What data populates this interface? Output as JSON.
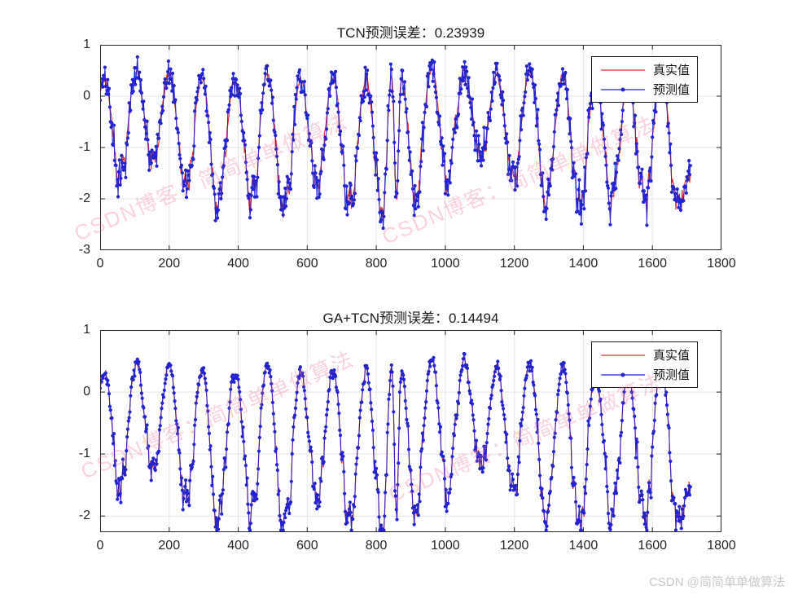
{
  "watermark": {
    "text": "CSDN博客：简简单单做算法",
    "color": "rgba(236,110,153,0.30)"
  },
  "credit": {
    "text": "CSDN @简简单单做算法",
    "color": "#c9c9c9"
  },
  "colors": {
    "true_line": "#e03030",
    "pred_line": "#2323cf",
    "grid": "#e4e4e4",
    "axis": "#262626",
    "background": "#ffffff"
  },
  "signal_model": {
    "step": 2,
    "texture_seed": 42,
    "deep_threshold": -0.7,
    "amp_deep": 0.26,
    "amp_shallow": 0.07,
    "smooth": 0.5,
    "anchors": [
      [
        0,
        0.1
      ],
      [
        12,
        0.32
      ],
      [
        58,
        -1.45
      ],
      [
        105,
        0.46
      ],
      [
        153,
        -1.35
      ],
      [
        200,
        0.44
      ],
      [
        248,
        -1.75
      ],
      [
        295,
        0.36
      ],
      [
        343,
        -2.05
      ],
      [
        390,
        0.3
      ],
      [
        438,
        -1.95
      ],
      [
        485,
        0.48
      ],
      [
        533,
        -2.2
      ],
      [
        580,
        0.3
      ],
      [
        628,
        -1.85
      ],
      [
        675,
        0.33
      ],
      [
        723,
        -2.1
      ],
      [
        770,
        0.35
      ],
      [
        818,
        -2.25
      ],
      [
        845,
        0.42
      ],
      [
        858,
        -2.0
      ],
      [
        872,
        0.35
      ],
      [
        913,
        -1.9
      ],
      [
        960,
        0.55
      ],
      [
        1008,
        -1.75
      ],
      [
        1055,
        0.5
      ],
      [
        1103,
        -1.25
      ],
      [
        1150,
        0.4
      ],
      [
        1198,
        -1.6
      ],
      [
        1245,
        0.45
      ],
      [
        1293,
        -2.1
      ],
      [
        1340,
        0.48
      ],
      [
        1388,
        -2.2
      ],
      [
        1435,
        0.22
      ],
      [
        1483,
        -1.95
      ],
      [
        1530,
        0.35
      ],
      [
        1578,
        -2.15
      ],
      [
        1625,
        0.47
      ],
      [
        1673,
        -2.1
      ],
      [
        1710,
        -1.5
      ]
    ]
  },
  "chart_data": [
    {
      "type": "line",
      "title": "TCN预测误差：0.23939",
      "error_value": 0.23939,
      "xlabel": "",
      "ylabel": "",
      "xlim": [
        0,
        1800
      ],
      "ylim": [
        -3,
        1
      ],
      "xticks": [
        0,
        200,
        400,
        600,
        800,
        1000,
        1200,
        1400,
        1600,
        1800
      ],
      "yticks": [
        1,
        0,
        -1,
        -2,
        -3
      ],
      "grid": true,
      "legend": {
        "position": "northeast",
        "entries": [
          {
            "label": "真实值",
            "color": "#e03030",
            "marker": "none"
          },
          {
            "label": "预测值",
            "color": "#2323cf",
            "marker": "dot"
          }
        ]
      },
      "series": [
        {
          "name": "真实值",
          "color": "#e03030",
          "marker": "none",
          "line_width": 1.2,
          "noise_amp": 0,
          "seed": 7
        },
        {
          "name": "预测值",
          "color": "#2323cf",
          "marker": "dot",
          "marker_size": 2.1,
          "line_width": 1,
          "noise_amp": 0.27,
          "seed": 101
        }
      ]
    },
    {
      "type": "line",
      "title": "GA+TCN预测误差：0.14494",
      "error_value": 0.14494,
      "xlabel": "",
      "ylabel": "",
      "xlim": [
        0,
        1800
      ],
      "ylim": [
        -2.26,
        1
      ],
      "xticks": [
        0,
        200,
        400,
        600,
        800,
        1000,
        1200,
        1400,
        1600,
        1800
      ],
      "yticks": [
        1,
        0,
        -1,
        -2
      ],
      "grid": true,
      "legend": {
        "position": "northeast",
        "entries": [
          {
            "label": "真实值",
            "color": "#e03030",
            "marker": "none"
          },
          {
            "label": "预测值",
            "color": "#2323cf",
            "marker": "dot"
          }
        ]
      },
      "series": [
        {
          "name": "真实值",
          "color": "#e03030",
          "marker": "none",
          "line_width": 1.2,
          "noise_amp": 0,
          "seed": 7
        },
        {
          "name": "预测值",
          "color": "#2323cf",
          "marker": "dot",
          "marker_size": 2.1,
          "line_width": 1,
          "noise_amp": 0.07,
          "seed": 202
        }
      ]
    }
  ]
}
